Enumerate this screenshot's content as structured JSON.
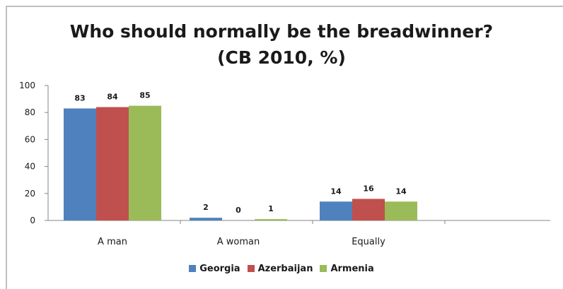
{
  "chart_data": {
    "type": "bar",
    "title": "Who should normally be the breadwinner?",
    "subtitle": "(CB 2010, %)",
    "categories": [
      "A man",
      "A woman",
      "Equally"
    ],
    "series": [
      {
        "name": "Georgia",
        "color": "#4f81bd",
        "values": [
          83,
          2,
          14
        ]
      },
      {
        "name": "Azerbaijan",
        "color": "#c0504d",
        "values": [
          84,
          0,
          16
        ]
      },
      {
        "name": "Armenia",
        "color": "#9bbb59",
        "values": [
          85,
          1,
          14
        ]
      }
    ],
    "ylim": [
      0,
      100
    ],
    "yticks": [
      0,
      20,
      40,
      60,
      80,
      100
    ],
    "grid": false,
    "legend_position": "bottom",
    "data_labels": true
  }
}
